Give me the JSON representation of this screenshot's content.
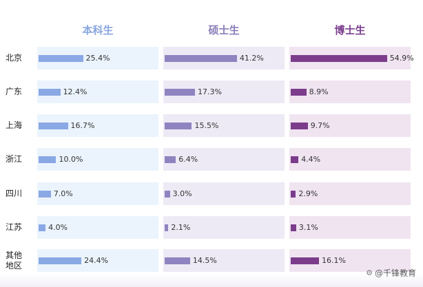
{
  "chart_data": {
    "type": "bar",
    "categories": [
      "北京",
      "广东",
      "上海",
      "浙江",
      "四川",
      "江苏",
      "其他\n地区"
    ],
    "series": [
      {
        "name": "本科生",
        "values": [
          25.4,
          12.4,
          16.7,
          10.0,
          7.0,
          4.0,
          24.4
        ],
        "labels": [
          "25.4%",
          "12.4%",
          "16.7%",
          "10.0%",
          "7.0%",
          "4.0%",
          "24.4%"
        ],
        "bar_color": "#8aa8e4",
        "bg_color": "#ebf4fd",
        "title_color": "#8aa6e0"
      },
      {
        "name": "硕士生",
        "values": [
          41.2,
          17.3,
          15.5,
          6.4,
          3.0,
          2.1,
          14.5
        ],
        "labels": [
          "41.2%",
          "17.3%",
          "15.5%",
          "6.4%",
          "3.0%",
          "2.1%",
          "14.5%"
        ],
        "bar_color": "#8f84bf",
        "bg_color": "#edeaf5",
        "title_color": "#8a7db8"
      },
      {
        "name": "博士生",
        "values": [
          54.9,
          8.9,
          9.7,
          4.4,
          2.9,
          3.1,
          16.1
        ],
        "labels": [
          "54.9%",
          "8.9%",
          "9.7%",
          "4.4%",
          "2.9%",
          "3.1%",
          "16.1%"
        ],
        "bar_color": "#7c3c8c",
        "bg_color": "#f0e4f1",
        "title_color": "#7a3d8c"
      }
    ],
    "ylim": [
      0,
      55
    ],
    "grid": false,
    "legend": "none"
  },
  "watermark": {
    "icon": "at-sign-icon",
    "text": "@千锋教育"
  }
}
